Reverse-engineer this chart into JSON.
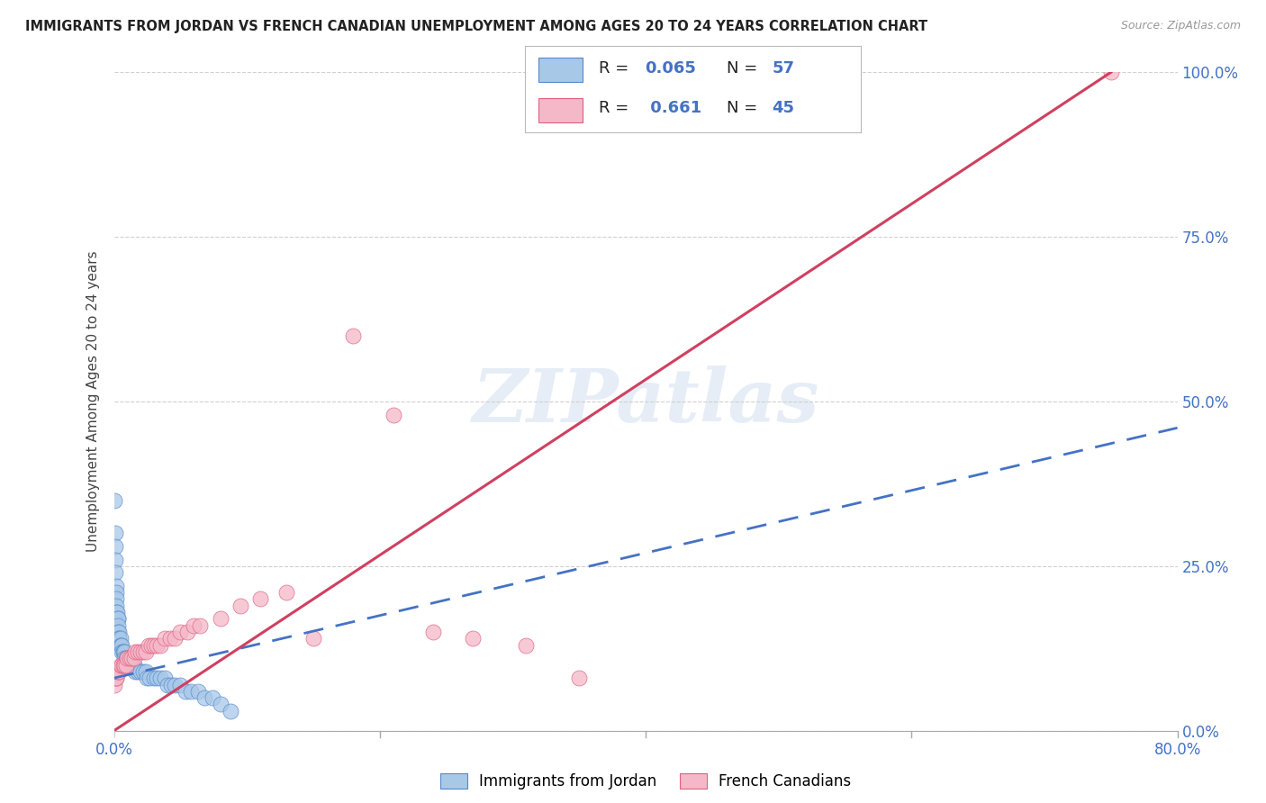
{
  "title": "IMMIGRANTS FROM JORDAN VS FRENCH CANADIAN UNEMPLOYMENT AMONG AGES 20 TO 24 YEARS CORRELATION CHART",
  "source": "Source: ZipAtlas.com",
  "ylabel": "Unemployment Among Ages 20 to 24 years",
  "xlim": [
    0,
    0.8
  ],
  "ylim": [
    0,
    1.0
  ],
  "legend_R1": "0.065",
  "legend_N1": "57",
  "legend_R2": "0.661",
  "legend_N2": "45",
  "blue_color": "#a8c8e8",
  "pink_color": "#f4b8c8",
  "blue_edge_color": "#5588cc",
  "pink_edge_color": "#e06080",
  "blue_line_color": "#4472c4",
  "pink_line_color": "#d04060",
  "watermark": "ZIPatlas",
  "blue_dots_x": [
    0.0005,
    0.0008,
    0.001,
    0.001,
    0.0012,
    0.0015,
    0.0015,
    0.002,
    0.002,
    0.002,
    0.0025,
    0.003,
    0.003,
    0.003,
    0.003,
    0.004,
    0.004,
    0.004,
    0.005,
    0.005,
    0.005,
    0.006,
    0.006,
    0.007,
    0.007,
    0.008,
    0.008,
    0.009,
    0.01,
    0.01,
    0.011,
    0.012,
    0.013,
    0.014,
    0.015,
    0.016,
    0.018,
    0.02,
    0.022,
    0.024,
    0.025,
    0.027,
    0.03,
    0.032,
    0.035,
    0.038,
    0.04,
    0.043,
    0.046,
    0.05,
    0.054,
    0.058,
    0.063,
    0.068,
    0.074,
    0.08,
    0.088
  ],
  "blue_dots_y": [
    0.35,
    0.3,
    0.28,
    0.26,
    0.24,
    0.22,
    0.21,
    0.2,
    0.19,
    0.18,
    0.18,
    0.17,
    0.17,
    0.16,
    0.15,
    0.15,
    0.14,
    0.14,
    0.14,
    0.13,
    0.13,
    0.13,
    0.12,
    0.12,
    0.12,
    0.12,
    0.11,
    0.11,
    0.11,
    0.1,
    0.1,
    0.1,
    0.1,
    0.1,
    0.1,
    0.09,
    0.09,
    0.09,
    0.09,
    0.09,
    0.08,
    0.08,
    0.08,
    0.08,
    0.08,
    0.08,
    0.07,
    0.07,
    0.07,
    0.07,
    0.06,
    0.06,
    0.06,
    0.05,
    0.05,
    0.04,
    0.03
  ],
  "pink_dots_x": [
    0.0005,
    0.001,
    0.0015,
    0.002,
    0.003,
    0.003,
    0.004,
    0.005,
    0.006,
    0.007,
    0.008,
    0.009,
    0.01,
    0.012,
    0.013,
    0.015,
    0.016,
    0.018,
    0.02,
    0.022,
    0.024,
    0.026,
    0.028,
    0.03,
    0.032,
    0.035,
    0.038,
    0.042,
    0.046,
    0.05,
    0.055,
    0.06,
    0.065,
    0.08,
    0.095,
    0.11,
    0.13,
    0.15,
    0.18,
    0.21,
    0.24,
    0.27,
    0.31,
    0.35,
    0.75
  ],
  "pink_dots_y": [
    0.07,
    0.08,
    0.08,
    0.08,
    0.09,
    0.09,
    0.09,
    0.1,
    0.1,
    0.1,
    0.1,
    0.1,
    0.11,
    0.11,
    0.11,
    0.11,
    0.12,
    0.12,
    0.12,
    0.12,
    0.12,
    0.13,
    0.13,
    0.13,
    0.13,
    0.13,
    0.14,
    0.14,
    0.14,
    0.15,
    0.15,
    0.16,
    0.16,
    0.17,
    0.19,
    0.2,
    0.21,
    0.14,
    0.6,
    0.48,
    0.15,
    0.14,
    0.13,
    0.08,
    1.0
  ],
  "blue_trend_x": [
    0.0,
    0.8
  ],
  "blue_trend_y": [
    0.08,
    0.46
  ],
  "pink_trend_x": [
    0.0,
    0.75
  ],
  "pink_trend_y": [
    0.0,
    1.0
  ]
}
